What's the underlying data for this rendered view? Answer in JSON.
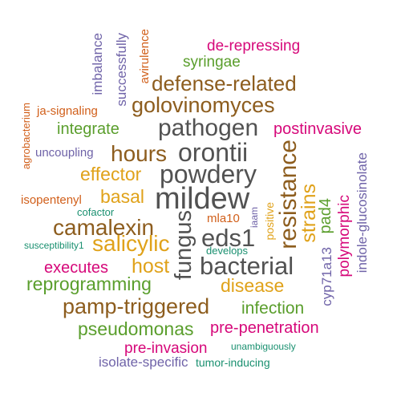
{
  "colors": {
    "pink": "#d6087a",
    "green": "#5a9e2c",
    "brown": "#8d5d1e",
    "gray": "#525252",
    "gold": "#e0a21a",
    "purple": "#6f63a8",
    "orange": "#d15f1a",
    "teal": "#1a9070"
  },
  "words": [
    {
      "text": "de-repressing",
      "color": "#d6087a"
    },
    {
      "text": "syringae",
      "color": "#5a9e2c"
    },
    {
      "text": "defense-related",
      "color": "#8d5d1e"
    },
    {
      "text": "golovinomyces",
      "color": "#8d5d1e"
    },
    {
      "text": "ja-signaling",
      "color": "#d15f1a"
    },
    {
      "text": "pathogen",
      "color": "#525252"
    },
    {
      "text": "integrate",
      "color": "#5a9e2c"
    },
    {
      "text": "postinvasive",
      "color": "#d6087a"
    },
    {
      "text": "uncoupling",
      "color": "#6f63a8"
    },
    {
      "text": "hours",
      "color": "#8d5d1e"
    },
    {
      "text": "orontii",
      "color": "#525252"
    },
    {
      "text": "effector",
      "color": "#e0a21a"
    },
    {
      "text": "powdery",
      "color": "#525252"
    },
    {
      "text": "basal",
      "color": "#e0a21a"
    },
    {
      "text": "mildew",
      "color": "#525252"
    },
    {
      "text": "isopentenyl",
      "color": "#d15f1a"
    },
    {
      "text": "cofactor",
      "color": "#1a9070"
    },
    {
      "text": "camalexin",
      "color": "#8d5d1e"
    },
    {
      "text": "mla10",
      "color": "#d15f1a"
    },
    {
      "text": "eds1",
      "color": "#525252"
    },
    {
      "text": "salicylic",
      "color": "#e0a21a"
    },
    {
      "text": "susceptibility1",
      "color": "#1a9070"
    },
    {
      "text": "develops",
      "color": "#1a9070"
    },
    {
      "text": "executes",
      "color": "#d6087a"
    },
    {
      "text": "host",
      "color": "#e0a21a"
    },
    {
      "text": "bacterial",
      "color": "#525252"
    },
    {
      "text": "reprogramming",
      "color": "#5a9e2c"
    },
    {
      "text": "disease",
      "color": "#e0a21a"
    },
    {
      "text": "pamp-triggered",
      "color": "#8d5d1e"
    },
    {
      "text": "infection",
      "color": "#5a9e2c"
    },
    {
      "text": "pseudomonas",
      "color": "#5a9e2c"
    },
    {
      "text": "pre-penetration",
      "color": "#d6087a"
    },
    {
      "text": "pre-invasion",
      "color": "#d6087a"
    },
    {
      "text": "unambiguously",
      "color": "#1a9070"
    },
    {
      "text": "isolate-specific",
      "color": "#6f63a8"
    },
    {
      "text": "tumor-inducing",
      "color": "#1a9070"
    },
    {
      "text": "imbalance",
      "color": "#6f63a8"
    },
    {
      "text": "successfully",
      "color": "#6f63a8"
    },
    {
      "text": "avirulence",
      "color": "#d15f1a"
    },
    {
      "text": "agrobacterium",
      "color": "#d15f1a"
    },
    {
      "text": "fungus",
      "color": "#525252"
    },
    {
      "text": "iaam",
      "color": "#6f63a8"
    },
    {
      "text": "positive",
      "color": "#e0a21a"
    },
    {
      "text": "resistance",
      "color": "#8d5d1e"
    },
    {
      "text": "strains",
      "color": "#e0a21a"
    },
    {
      "text": "pad4",
      "color": "#5a9e2c"
    },
    {
      "text": "cyp71a13",
      "color": "#6f63a8"
    },
    {
      "text": "polymorphic",
      "color": "#d6087a"
    },
    {
      "text": "indole-glucosinolate",
      "color": "#6f63a8"
    }
  ]
}
